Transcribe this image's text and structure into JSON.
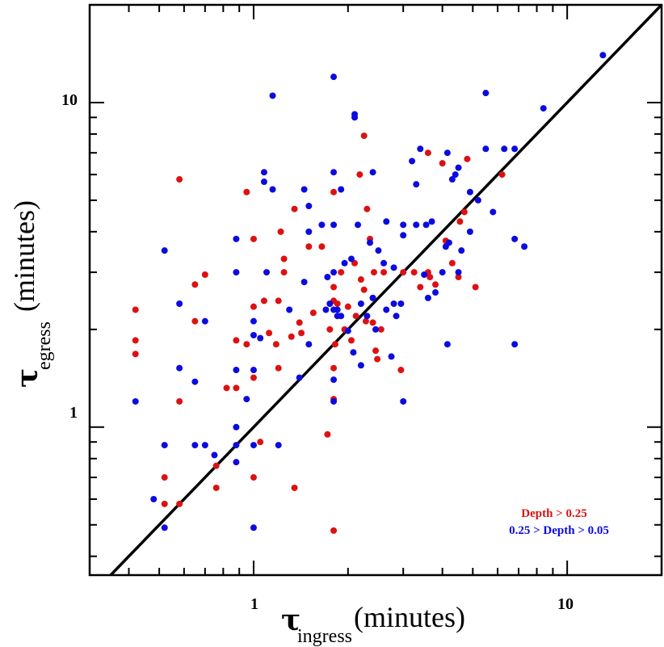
{
  "chart_data": {
    "type": "scatter",
    "scale": "log-log",
    "xlim": [
      0.3,
      20
    ],
    "ylim": [
      0.35,
      20
    ],
    "x_tick_labels": [
      {
        "value": 1,
        "label": "1"
      },
      {
        "value": 10,
        "label": "10"
      }
    ],
    "y_tick_labels": [
      {
        "value": 1,
        "label": "1"
      },
      {
        "value": 10,
        "label": "10"
      }
    ],
    "xlabel": {
      "symbol": "τ",
      "subscript": "ingress",
      "text": "(minutes)"
    },
    "ylabel": {
      "symbol": "τ",
      "subscript": "egress",
      "text": "(minutes)"
    },
    "reference_line": "y = x",
    "legend_position": "bottom-right",
    "series": [
      {
        "name": "Depth > 0.25",
        "color": "#dd1111",
        "points": [
          [
            0.42,
            2.3
          ],
          [
            0.42,
            1.85
          ],
          [
            0.42,
            1.68
          ],
          [
            0.52,
            0.7
          ],
          [
            0.52,
            0.58
          ],
          [
            0.58,
            5.8
          ],
          [
            0.58,
            1.2
          ],
          [
            0.58,
            0.58
          ],
          [
            0.65,
            2.75
          ],
          [
            0.65,
            2.12
          ],
          [
            0.7,
            2.95
          ],
          [
            0.76,
            0.76
          ],
          [
            0.76,
            0.65
          ],
          [
            0.82,
            1.32
          ],
          [
            0.88,
            1.32
          ],
          [
            0.88,
            1.85
          ],
          [
            0.95,
            5.3
          ],
          [
            0.95,
            1.8
          ],
          [
            1.0,
            3.8
          ],
          [
            1.0,
            2.35
          ],
          [
            1.0,
            1.42
          ],
          [
            1.0,
            0.7
          ],
          [
            1.05,
            0.9
          ],
          [
            1.08,
            2.45
          ],
          [
            1.12,
            1.95
          ],
          [
            1.18,
            1.8
          ],
          [
            1.2,
            2.45
          ],
          [
            1.2,
            1.52
          ],
          [
            1.22,
            4.0
          ],
          [
            1.25,
            3.3
          ],
          [
            1.25,
            3.0
          ],
          [
            1.32,
            1.9
          ],
          [
            1.35,
            4.7
          ],
          [
            1.35,
            0.65
          ],
          [
            1.4,
            2.1
          ],
          [
            1.42,
            1.95
          ],
          [
            1.5,
            3.6
          ],
          [
            1.55,
            2.25
          ],
          [
            1.65,
            3.6
          ],
          [
            1.72,
            0.95
          ],
          [
            1.75,
            2.0
          ],
          [
            1.8,
            5.3
          ],
          [
            1.8,
            2.7
          ],
          [
            1.8,
            2.45
          ],
          [
            1.8,
            1.52
          ],
          [
            1.8,
            1.22
          ],
          [
            1.8,
            0.48
          ],
          [
            1.82,
            1.8
          ],
          [
            1.85,
            2.4
          ],
          [
            1.9,
            3.0
          ],
          [
            1.95,
            2.0
          ],
          [
            2.0,
            2.35
          ],
          [
            2.05,
            1.85
          ],
          [
            2.1,
            3.2
          ],
          [
            2.12,
            2.2
          ],
          [
            2.18,
            6.0
          ],
          [
            2.2,
            2.85
          ],
          [
            2.25,
            7.9
          ],
          [
            2.25,
            2.65
          ],
          [
            2.28,
            2.12
          ],
          [
            2.3,
            4.7
          ],
          [
            2.35,
            3.8
          ],
          [
            2.4,
            2.1
          ],
          [
            2.4,
            2.5
          ],
          [
            2.42,
            3.0
          ],
          [
            2.45,
            1.72
          ],
          [
            2.48,
            1.62
          ],
          [
            2.55,
            2.0
          ],
          [
            2.6,
            3.0
          ],
          [
            2.95,
            1.5
          ],
          [
            3.0,
            3.0
          ],
          [
            3.25,
            3.0
          ],
          [
            3.4,
            2.7
          ],
          [
            3.6,
            7.0
          ],
          [
            3.6,
            3.0
          ],
          [
            3.65,
            2.9
          ],
          [
            3.8,
            2.75
          ],
          [
            4.0,
            6.5
          ],
          [
            4.1,
            3.75
          ],
          [
            4.3,
            3.2
          ],
          [
            4.5,
            2.9
          ],
          [
            4.55,
            4.3
          ],
          [
            4.7,
            4.6
          ],
          [
            4.8,
            6.7
          ],
          [
            5.1,
            2.7
          ],
          [
            6.2,
            6.0
          ]
        ]
      },
      {
        "name": "0.25 > Depth > 0.05",
        "color": "#0b0be0",
        "points": [
          [
            0.42,
            1.2
          ],
          [
            0.48,
            0.6
          ],
          [
            0.52,
            3.5
          ],
          [
            0.52,
            0.88
          ],
          [
            0.52,
            0.49
          ],
          [
            0.58,
            2.4
          ],
          [
            0.58,
            1.52
          ],
          [
            0.65,
            1.38
          ],
          [
            0.65,
            0.88
          ],
          [
            0.7,
            2.12
          ],
          [
            0.7,
            0.88
          ],
          [
            0.75,
            0.82
          ],
          [
            0.88,
            3.8
          ],
          [
            0.88,
            3.0
          ],
          [
            0.88,
            1.5
          ],
          [
            0.88,
            1.0
          ],
          [
            0.88,
            0.88
          ],
          [
            0.88,
            0.78
          ],
          [
            0.95,
            1.22
          ],
          [
            1.0,
            2.12
          ],
          [
            1.0,
            1.92
          ],
          [
            1.0,
            1.5
          ],
          [
            1.0,
            0.88
          ],
          [
            1.0,
            0.49
          ],
          [
            1.05,
            1.88
          ],
          [
            1.08,
            6.1
          ],
          [
            1.08,
            5.7
          ],
          [
            1.1,
            3.0
          ],
          [
            1.15,
            10.5
          ],
          [
            1.15,
            5.4
          ],
          [
            1.2,
            0.88
          ],
          [
            1.3,
            2.3
          ],
          [
            1.4,
            1.42
          ],
          [
            1.45,
            5.4
          ],
          [
            1.45,
            2.8
          ],
          [
            1.5,
            4.8
          ],
          [
            1.5,
            4.0
          ],
          [
            1.5,
            1.8
          ],
          [
            1.65,
            4.2
          ],
          [
            1.7,
            2.3
          ],
          [
            1.72,
            2.9
          ],
          [
            1.75,
            2.4
          ],
          [
            1.8,
            12.0
          ],
          [
            1.8,
            6.1
          ],
          [
            1.8,
            4.2
          ],
          [
            1.8,
            3.0
          ],
          [
            1.8,
            2.3
          ],
          [
            1.8,
            1.4
          ],
          [
            1.8,
            1.2
          ],
          [
            1.85,
            2.3
          ],
          [
            1.85,
            2.2
          ],
          [
            1.9,
            5.4
          ],
          [
            1.9,
            2.2
          ],
          [
            1.95,
            3.2
          ],
          [
            2.0,
            1.98
          ],
          [
            2.05,
            3.3
          ],
          [
            2.08,
            1.7
          ],
          [
            2.1,
            9.2
          ],
          [
            2.1,
            9.0
          ],
          [
            2.15,
            4.2
          ],
          [
            2.2,
            2.4
          ],
          [
            2.2,
            1.55
          ],
          [
            2.3,
            2.2
          ],
          [
            2.35,
            3.7
          ],
          [
            2.4,
            6.1
          ],
          [
            2.4,
            2.5
          ],
          [
            2.45,
            2.0
          ],
          [
            2.5,
            3.5
          ],
          [
            2.6,
            3.2
          ],
          [
            2.65,
            4.3
          ],
          [
            2.65,
            2.3
          ],
          [
            2.75,
            1.65
          ],
          [
            2.8,
            3.1
          ],
          [
            2.8,
            2.4
          ],
          [
            2.85,
            2.2
          ],
          [
            2.95,
            2.4
          ],
          [
            3.0,
            4.2
          ],
          [
            3.0,
            3.9
          ],
          [
            3.0,
            1.2
          ],
          [
            3.2,
            6.6
          ],
          [
            3.3,
            5.6
          ],
          [
            3.3,
            4.2
          ],
          [
            3.4,
            7.2
          ],
          [
            3.5,
            2.95
          ],
          [
            3.55,
            4.2
          ],
          [
            3.6,
            2.5
          ],
          [
            3.7,
            4.3
          ],
          [
            3.8,
            2.6
          ],
          [
            4.0,
            3.0
          ],
          [
            4.1,
            3.6
          ],
          [
            4.15,
            7.0
          ],
          [
            4.15,
            1.8
          ],
          [
            4.2,
            3.7
          ],
          [
            4.3,
            5.8
          ],
          [
            4.4,
            6.0
          ],
          [
            4.5,
            6.3
          ],
          [
            4.5,
            3.0
          ],
          [
            4.6,
            3.5
          ],
          [
            4.9,
            5.3
          ],
          [
            4.9,
            4.0
          ],
          [
            5.2,
            5.0
          ],
          [
            5.5,
            10.7
          ],
          [
            5.5,
            7.2
          ],
          [
            5.8,
            4.6
          ],
          [
            6.3,
            7.2
          ],
          [
            6.8,
            7.2
          ],
          [
            6.8,
            3.8
          ],
          [
            6.8,
            1.8
          ],
          [
            7.3,
            3.6
          ],
          [
            8.4,
            9.6
          ],
          [
            13.0,
            14.0
          ]
        ]
      }
    ]
  }
}
